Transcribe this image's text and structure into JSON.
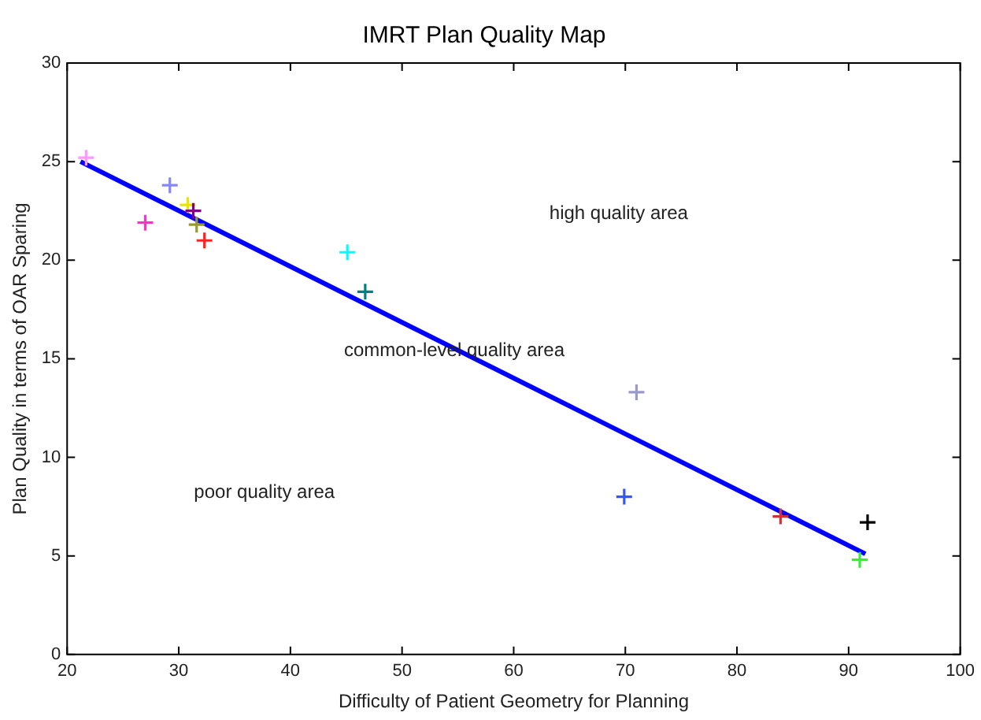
{
  "chart_data": {
    "type": "scatter",
    "title": "IMRT Plan Quality Map",
    "xlabel": "Difficulty of Patient Geometry for Planning",
    "ylabel": "Plan Quality in terms of OAR Sparing",
    "xlim": [
      20,
      100
    ],
    "xticks": [
      20,
      30,
      40,
      50,
      60,
      70,
      80,
      90,
      100
    ],
    "ylim": [
      0,
      30
    ],
    "yticks": [
      0,
      5,
      10,
      15,
      20,
      25,
      30
    ],
    "grid": false,
    "legend": false,
    "series": [
      {
        "type": "scatter",
        "marker": "cross",
        "x": [
          21.7,
          29.2,
          27.0,
          30.8,
          31.3,
          31.6,
          32.3,
          45.1,
          46.7,
          71.0,
          69.9,
          83.9,
          91.7,
          91.0
        ],
        "values": [
          25.2,
          23.8,
          21.9,
          22.8,
          22.5,
          21.8,
          21.0,
          20.4,
          18.4,
          13.3,
          8.0,
          7.0,
          6.7,
          4.8
        ],
        "colors": [
          "#ff99ff",
          "#8888ee",
          "#ff33cc",
          "#e6e600",
          "#800080",
          "#999933",
          "#ff2222",
          "#00ffff",
          "#008080",
          "#9999cc",
          "#3355ff",
          "#cc3333",
          "#000000",
          "#33ee33"
        ]
      },
      {
        "type": "line",
        "marker": "none",
        "color": "#0000ff",
        "x": [
          21.2,
          91.5
        ],
        "values": [
          25.0,
          5.1
        ]
      }
    ],
    "annotations": [
      "high quality area",
      "common-level quality area",
      "poor quality area"
    ]
  }
}
